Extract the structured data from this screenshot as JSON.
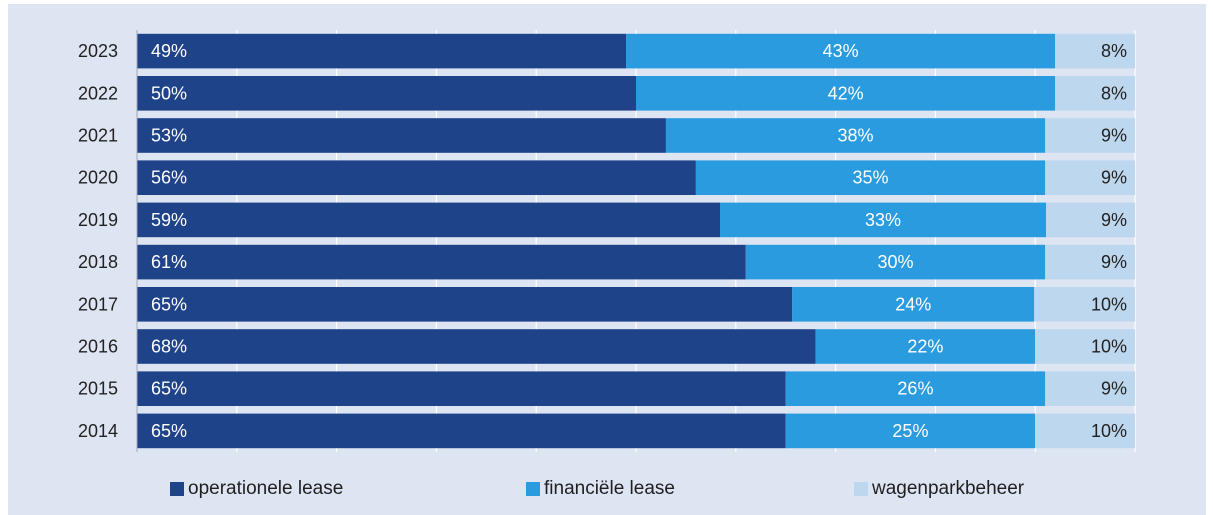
{
  "chart_data": {
    "type": "bar",
    "orientation": "horizontal",
    "stacked": true,
    "normalized": true,
    "categories": [
      "2023",
      "2022",
      "2021",
      "2020",
      "2019",
      "2018",
      "2017",
      "2016",
      "2015",
      "2014"
    ],
    "series": [
      {
        "name": "operationele lease",
        "values": [
          49,
          50,
          53,
          56,
          59,
          61,
          65,
          68,
          65,
          65
        ],
        "labels": [
          "49%",
          "50%",
          "53%",
          "56%",
          "59%",
          "61%",
          "65%",
          "68%",
          "65%",
          "65%"
        ]
      },
      {
        "name": "financiële lease",
        "values": [
          43,
          42,
          38,
          35,
          33,
          30,
          24,
          22,
          26,
          25
        ],
        "labels": [
          "43%",
          "42%",
          "38%",
          "35%",
          "33%",
          "30%",
          "24%",
          "22%",
          "26%",
          "25%"
        ]
      },
      {
        "name": "wagenparkbeheer",
        "values": [
          8,
          8,
          9,
          9,
          9,
          9,
          10,
          10,
          9,
          10
        ],
        "labels": [
          "8%",
          "8%",
          "9%",
          "9%",
          "9%",
          "9%",
          "10%",
          "10%",
          "9%",
          "10%"
        ]
      }
    ],
    "xlim": [
      0,
      100
    ],
    "grid": true,
    "legend": "bottom",
    "colors": {
      "operationele lease": "#1f4389",
      "financiële lease": "#2b9be0",
      "wagenparkbeheer": "#bdd7ee"
    },
    "label_colors": {
      "operationele lease": "#ffffff",
      "financiële lease": "#ffffff",
      "wagenparkbeheer": "#222222"
    }
  }
}
